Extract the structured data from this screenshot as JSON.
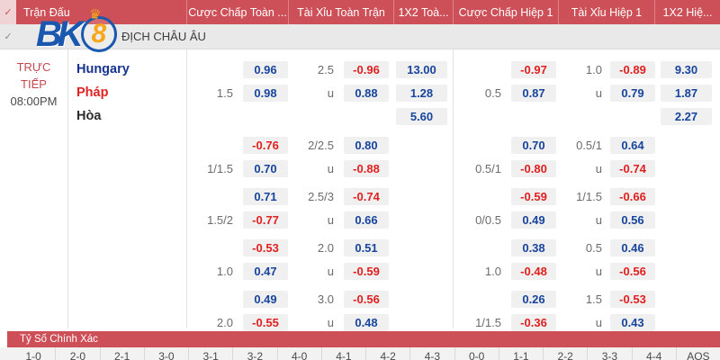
{
  "logo": {
    "bk": "BK",
    "eight": "8",
    "crown": "♛"
  },
  "checks": {
    "header": "✓",
    "league": "✓"
  },
  "header_columns": [
    "Trận Đấu",
    "Cược Chấp Toàn ...",
    "Tài Xỉu Toàn Trận",
    "1X2 Toà...",
    "Cược Chấp Hiệp 1",
    "Tài Xỉu Hiệp 1",
    "1X2 Hiệ..."
  ],
  "league": {
    "name": "ĐỊCH CHÂU ÂU"
  },
  "match": {
    "live_line1": "TRỰC",
    "live_line2": "TIẾP",
    "time": "08:00PM",
    "home": "Hungary",
    "away": "Pháp",
    "draw": "Hòa"
  },
  "colors": {
    "header_red": "#cd4f57",
    "odds_blue": "#17449c",
    "odds_red": "#e01f1f",
    "pill_bg": "#f0f0f0"
  },
  "odds_blocks": [
    {
      "rows": [
        {
          "ft_hdp": [
            "",
            "0.96"
          ],
          "ft_ou": [
            "2.5",
            "-0.96"
          ],
          "ft_1x2": "13.00",
          "h1_hdp": [
            "",
            "-0.97"
          ],
          "h1_ou": [
            "1.0",
            "-0.89"
          ],
          "h1_1x2": "9.30"
        },
        {
          "ft_hdp": [
            "1.5",
            "0.98"
          ],
          "ft_ou": [
            "u",
            "0.88"
          ],
          "ft_1x2": "1.28",
          "h1_hdp": [
            "0.5",
            "0.87"
          ],
          "h1_ou": [
            "u",
            "0.79"
          ],
          "h1_1x2": "1.87"
        },
        {
          "ft_hdp": null,
          "ft_ou": null,
          "ft_1x2": "5.60",
          "h1_hdp": null,
          "h1_ou": null,
          "h1_1x2": "2.27"
        }
      ]
    },
    {
      "rows": [
        {
          "ft_hdp": [
            "",
            "-0.76"
          ],
          "ft_ou": [
            "2/2.5",
            "0.80"
          ],
          "ft_1x2": null,
          "h1_hdp": [
            "",
            "0.70"
          ],
          "h1_ou": [
            "0.5/1",
            "0.64"
          ],
          "h1_1x2": null
        },
        {
          "ft_hdp": [
            "1/1.5",
            "0.70"
          ],
          "ft_ou": [
            "u",
            "-0.88"
          ],
          "ft_1x2": null,
          "h1_hdp": [
            "0.5/1",
            "-0.80"
          ],
          "h1_ou": [
            "u",
            "-0.74"
          ],
          "h1_1x2": null
        }
      ]
    },
    {
      "rows": [
        {
          "ft_hdp": [
            "",
            "0.71"
          ],
          "ft_ou": [
            "2.5/3",
            "-0.74"
          ],
          "ft_1x2": null,
          "h1_hdp": [
            "",
            "-0.59"
          ],
          "h1_ou": [
            "1/1.5",
            "-0.66"
          ],
          "h1_1x2": null
        },
        {
          "ft_hdp": [
            "1.5/2",
            "-0.77"
          ],
          "ft_ou": [
            "u",
            "0.66"
          ],
          "ft_1x2": null,
          "h1_hdp": [
            "0/0.5",
            "0.49"
          ],
          "h1_ou": [
            "u",
            "0.56"
          ],
          "h1_1x2": null
        }
      ]
    },
    {
      "rows": [
        {
          "ft_hdp": [
            "",
            "-0.53"
          ],
          "ft_ou": [
            "2.0",
            "0.51"
          ],
          "ft_1x2": null,
          "h1_hdp": [
            "",
            "0.38"
          ],
          "h1_ou": [
            "0.5",
            "0.46"
          ],
          "h1_1x2": null
        },
        {
          "ft_hdp": [
            "1.0",
            "0.47"
          ],
          "ft_ou": [
            "u",
            "-0.59"
          ],
          "ft_1x2": null,
          "h1_hdp": [
            "1.0",
            "-0.48"
          ],
          "h1_ou": [
            "u",
            "-0.56"
          ],
          "h1_1x2": null
        }
      ]
    },
    {
      "rows": [
        {
          "ft_hdp": [
            "",
            "0.49"
          ],
          "ft_ou": [
            "3.0",
            "-0.56"
          ],
          "ft_1x2": null,
          "h1_hdp": [
            "",
            "0.26"
          ],
          "h1_ou": [
            "1.5",
            "-0.53"
          ],
          "h1_1x2": null
        },
        {
          "ft_hdp": [
            "2.0",
            "-0.55"
          ],
          "ft_ou": [
            "u",
            "0.48"
          ],
          "ft_1x2": null,
          "h1_hdp": [
            "1/1.5",
            "-0.36"
          ],
          "h1_ou": [
            "u",
            "0.43"
          ],
          "h1_1x2": null
        }
      ]
    }
  ],
  "correct_score": {
    "title": "Tỷ Số Chính Xác",
    "options": [
      "1-0",
      "2-0",
      "2-1",
      "3-0",
      "3-1",
      "3-2",
      "4-0",
      "4-1",
      "4-2",
      "4-3",
      "0-0",
      "1-1",
      "2-2",
      "3-3",
      "4-4",
      "AOS"
    ]
  }
}
